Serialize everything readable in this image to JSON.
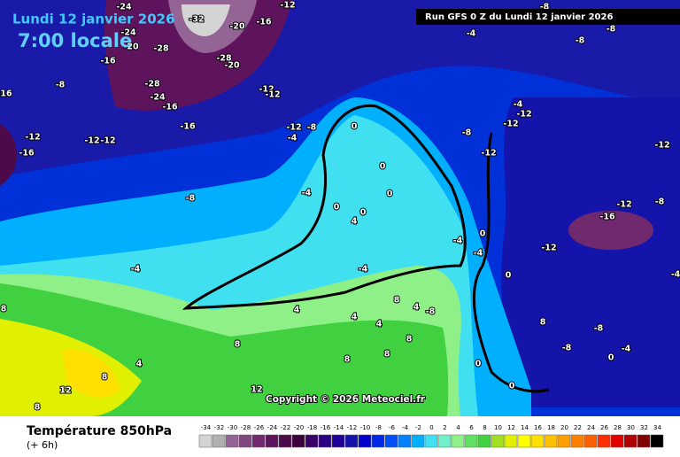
{
  "header": {
    "date": "Lundi 12 janvier 2026",
    "time": "7:00 locale",
    "run": "Run GFS 0 Z du Lundi 12 janvier 2026"
  },
  "copyright": "Copyright © 2026 Meteociel.fr",
  "legend": {
    "title": "Température 850hPa",
    "subtitle": "(+ 6h)",
    "scale": [
      {
        "value": -34,
        "color": "#d4d4d4"
      },
      {
        "value": -32,
        "color": "#b0b0b0"
      },
      {
        "value": -30,
        "color": "#946494"
      },
      {
        "value": -28,
        "color": "#82467f"
      },
      {
        "value": -26,
        "color": "#70286e"
      },
      {
        "value": -24,
        "color": "#5e145c"
      },
      {
        "value": -22,
        "color": "#4c0a4a"
      },
      {
        "value": -20,
        "color": "#3c003c"
      },
      {
        "value": -18,
        "color": "#3a0066"
      },
      {
        "value": -16,
        "color": "#2c0082"
      },
      {
        "value": -14,
        "color": "#1e0096"
      },
      {
        "value": -12,
        "color": "#1414aa"
      },
      {
        "value": -10,
        "color": "#0000c8"
      },
      {
        "value": -8,
        "color": "#0028e6"
      },
      {
        "value": -6,
        "color": "#0050f5"
      },
      {
        "value": -4,
        "color": "#0080ff"
      },
      {
        "value": -2,
        "color": "#00b0ff"
      },
      {
        "value": 0,
        "color": "#40e0f0"
      },
      {
        "value": 2,
        "color": "#70f0c8"
      },
      {
        "value": 4,
        "color": "#90f088"
      },
      {
        "value": 6,
        "color": "#60e060"
      },
      {
        "value": 8,
        "color": "#40d040"
      },
      {
        "value": 10,
        "color": "#a0e020"
      },
      {
        "value": 12,
        "color": "#e0f000"
      },
      {
        "value": 14,
        "color": "#ffff00"
      },
      {
        "value": 16,
        "color": "#ffe000"
      },
      {
        "value": 18,
        "color": "#ffc000"
      },
      {
        "value": 20,
        "color": "#ffa000"
      },
      {
        "value": 22,
        "color": "#ff8000"
      },
      {
        "value": 24,
        "color": "#ff6000"
      },
      {
        "value": 26,
        "color": "#ff3000"
      },
      {
        "value": 28,
        "color": "#e00000"
      },
      {
        "value": 30,
        "color": "#b00000"
      },
      {
        "value": 32,
        "color": "#800000"
      },
      {
        "value": 34,
        "color": "#000000"
      }
    ]
  },
  "map_labels": [
    "-24",
    "-32",
    "-20",
    "-12",
    "-16",
    "-24",
    "-20",
    "-28",
    "-16",
    "-28",
    "-20",
    "-28",
    "-24",
    "-16",
    "-12",
    "-12",
    "-8",
    "-16",
    "-16",
    "-12",
    "-8",
    "-4",
    "-12",
    "-12",
    "-12",
    "-16",
    "-8",
    "-4",
    "0",
    "0",
    "0",
    "0",
    "0",
    "-4",
    "-8",
    "-8",
    "-8",
    "-4",
    "-12",
    "-12",
    "-8",
    "-12",
    "-12",
    "-12",
    "-16",
    "-8",
    "-12",
    "-4",
    "0",
    "-4",
    "0",
    "-4",
    "-4",
    "4",
    "4",
    "4",
    "4",
    "-8",
    "8",
    "8",
    "8",
    "8",
    "8",
    "4",
    "8",
    "12",
    "8",
    "12",
    "8",
    "8",
    "-8",
    "-8",
    "-4",
    "0",
    "0",
    "0",
    "-4",
    "4"
  ]
}
